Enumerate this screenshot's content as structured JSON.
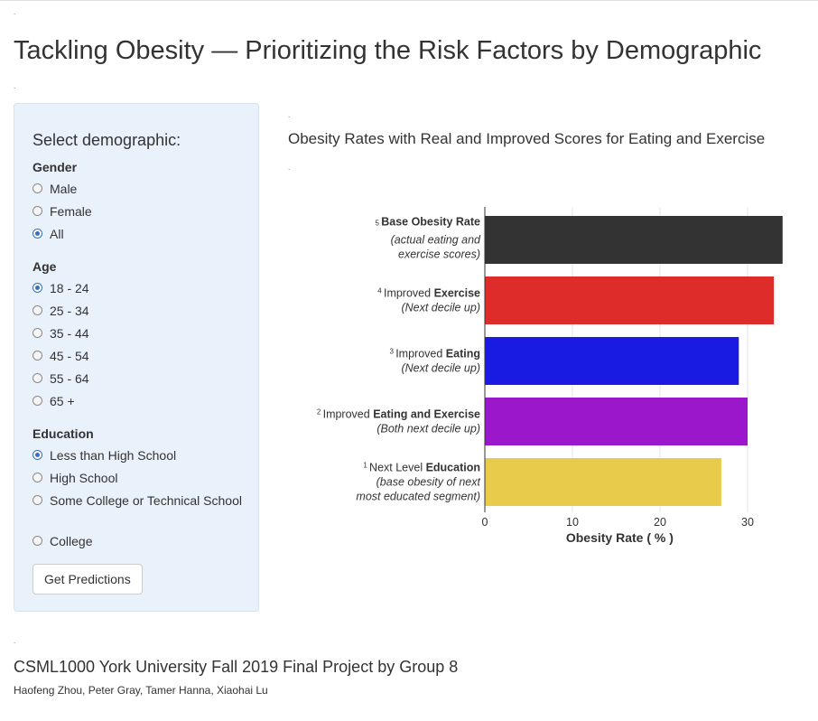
{
  "page": {
    "title": "Tackling Obesity — Prioritizing the Risk Factors by Demographic",
    "marker": "."
  },
  "sidebar": {
    "title": "Select demographic:",
    "gender": {
      "label": "Gender",
      "options": [
        "Male",
        "Female",
        "All"
      ],
      "selected": "All"
    },
    "age": {
      "label": "Age",
      "options": [
        "18 - 24",
        "25 - 34",
        "35 - 44",
        "45 - 54",
        "55 - 64",
        "65 +"
      ],
      "selected": "18 - 24"
    },
    "education": {
      "label": "Education",
      "options": [
        "Less than High School",
        "High School",
        "Some College or Technical School",
        "College"
      ],
      "selected": "Less than High School"
    },
    "button_label": "Get Predictions"
  },
  "chart_data": {
    "type": "bar",
    "orientation": "horizontal",
    "title": "Obesity Rates with Real and Improved Scores for Eating and Exercise",
    "xlabel": "Obesity Rate ( % )",
    "ylabel": "",
    "xlim": [
      0,
      34
    ],
    "xticks": [
      0,
      10,
      20,
      30
    ],
    "grid": true,
    "categories": [
      {
        "num": "5",
        "pre": "",
        "bold": "Base Obesity Rate",
        "post": "",
        "sub": [
          "(actual eating and",
          "exercise scores)"
        ]
      },
      {
        "num": "4",
        "pre": "Improved ",
        "bold": "Exercise",
        "post": "",
        "sub": [
          "(Next decile up)"
        ]
      },
      {
        "num": "3",
        "pre": "Improved ",
        "bold": "Eating",
        "post": "",
        "sub": [
          "(Next decile up)"
        ]
      },
      {
        "num": "2",
        "pre": "Improved ",
        "bold": "Eating and Exercise",
        "post": "",
        "sub": [
          "(Both next decile up)"
        ]
      },
      {
        "num": "1",
        "pre": "Next Level ",
        "bold": "Education",
        "post": "",
        "sub": [
          "(base obesity of next",
          "most educated segment)"
        ]
      }
    ],
    "values": [
      34.0,
      33.0,
      29.0,
      30.0,
      27.0
    ],
    "colors": [
      "#333333",
      "#dd2c2a",
      "#1a1be2",
      "#9b17cc",
      "#e9cb4c"
    ]
  },
  "footer": {
    "title": "CSML1000 York University Fall 2019 Final Project by Group 8",
    "authors": "Haofeng Zhou, Peter Gray, Tamer Hanna, Xiaohai Lu"
  }
}
